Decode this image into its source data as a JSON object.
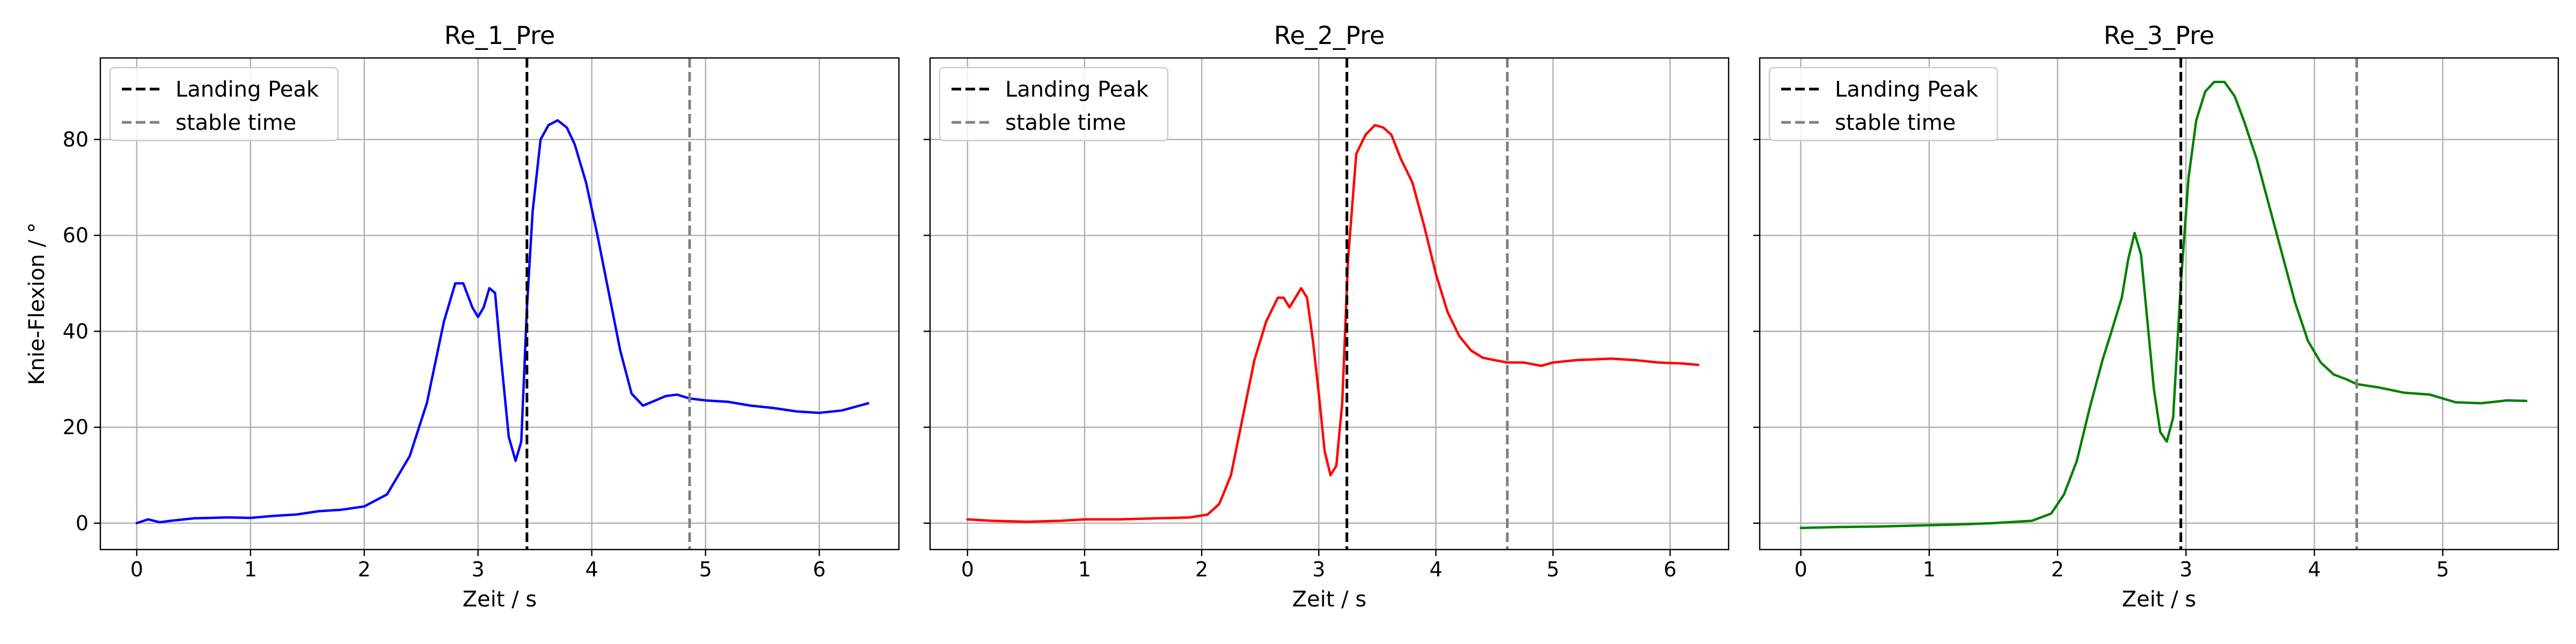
{
  "chart_data": [
    {
      "type": "line",
      "title": "Re_1_Pre",
      "xlabel": "Zeit / s",
      "ylabel": "Knie-Flexion / °",
      "xlim": [
        -0.32,
        6.7
      ],
      "ylim": [
        -5.5,
        97
      ],
      "xticks": [
        0,
        1,
        2,
        3,
        4,
        5,
        6
      ],
      "yticks": [
        0,
        20,
        40,
        60,
        80
      ],
      "grid": true,
      "legend_position": "top-left",
      "markers": [
        {
          "name": "Landing Peak",
          "x": 3.43,
          "color": "#000000"
        },
        {
          "name": "stable time",
          "x": 4.86,
          "color": "#808080"
        }
      ],
      "series": [
        {
          "color": "#0000ff",
          "x": [
            0,
            0.1,
            0.2,
            0.3,
            0.5,
            0.8,
            1.0,
            1.2,
            1.4,
            1.6,
            1.8,
            2.0,
            2.2,
            2.4,
            2.55,
            2.7,
            2.8,
            2.87,
            2.95,
            3.0,
            3.05,
            3.1,
            3.15,
            3.2,
            3.27,
            3.33,
            3.38,
            3.43,
            3.48,
            3.55,
            3.62,
            3.7,
            3.78,
            3.85,
            3.95,
            4.05,
            4.15,
            4.25,
            4.35,
            4.45,
            4.55,
            4.65,
            4.75,
            4.86,
            5.0,
            5.2,
            5.4,
            5.6,
            5.8,
            6.0,
            6.2,
            6.43
          ],
          "y": [
            0,
            0.8,
            0.2,
            0.5,
            1.0,
            1.2,
            1.1,
            1.5,
            1.8,
            2.5,
            2.8,
            3.5,
            6.0,
            14.0,
            25.0,
            42.0,
            50.0,
            50.0,
            45.0,
            43.0,
            45.0,
            49.0,
            48.0,
            35.0,
            18.0,
            13.0,
            17.0,
            45.0,
            65.0,
            80.0,
            83.0,
            84.0,
            82.5,
            79.0,
            71.0,
            60.0,
            48.0,
            36.0,
            27.0,
            24.5,
            25.5,
            26.5,
            26.8,
            26.0,
            25.6,
            25.3,
            24.5,
            24.0,
            23.3,
            23.0,
            23.5,
            25.0
          ]
        }
      ]
    },
    {
      "type": "line",
      "title": "Re_2_Pre",
      "xlabel": "Zeit / s",
      "ylabel": "",
      "xlim": [
        -0.32,
        6.5
      ],
      "ylim": [
        -5.5,
        97
      ],
      "xticks": [
        0,
        1,
        2,
        3,
        4,
        5,
        6
      ],
      "yticks": [
        0,
        20,
        40,
        60,
        80
      ],
      "grid": true,
      "legend_position": "top-left",
      "markers": [
        {
          "name": "Landing Peak",
          "x": 3.24,
          "color": "#000000"
        },
        {
          "name": "stable time",
          "x": 4.61,
          "color": "#808080"
        }
      ],
      "series": [
        {
          "color": "#ff0000",
          "x": [
            0,
            0.2,
            0.5,
            0.8,
            1.0,
            1.3,
            1.6,
            1.9,
            2.05,
            2.15,
            2.25,
            2.35,
            2.45,
            2.55,
            2.65,
            2.7,
            2.75,
            2.8,
            2.85,
            2.9,
            2.95,
            3.0,
            3.05,
            3.1,
            3.15,
            3.2,
            3.25,
            3.32,
            3.4,
            3.48,
            3.55,
            3.62,
            3.7,
            3.8,
            3.9,
            4.0,
            4.1,
            4.2,
            4.3,
            4.4,
            4.5,
            4.61,
            4.75,
            4.9,
            5.0,
            5.2,
            5.5,
            5.7,
            5.9,
            6.1,
            6.24
          ],
          "y": [
            0.8,
            0.5,
            0.3,
            0.5,
            0.8,
            0.8,
            1.0,
            1.2,
            1.8,
            4.0,
            10.0,
            22.0,
            34.0,
            42.0,
            47.0,
            47.0,
            45.0,
            47.0,
            49.0,
            47.0,
            38.0,
            27.0,
            15.0,
            10.0,
            12.0,
            25.0,
            55.0,
            77.0,
            81.0,
            83.0,
            82.5,
            81.0,
            76.0,
            71.0,
            62.0,
            52.0,
            44.0,
            39.0,
            36.0,
            34.5,
            34.0,
            33.5,
            33.5,
            32.8,
            33.5,
            34.0,
            34.3,
            34.0,
            33.5,
            33.3,
            33.0
          ]
        }
      ]
    },
    {
      "type": "line",
      "title": "Re_3_Pre",
      "xlabel": "Zeit / s",
      "ylabel": "",
      "xlim": [
        -0.32,
        5.9
      ],
      "ylim": [
        -5.5,
        97
      ],
      "xticks": [
        0,
        1,
        2,
        3,
        4,
        5
      ],
      "yticks": [
        0,
        20,
        40,
        60,
        80
      ],
      "grid": true,
      "legend_position": "top-left",
      "markers": [
        {
          "name": "Landing Peak",
          "x": 2.96,
          "color": "#000000"
        },
        {
          "name": "stable time",
          "x": 4.33,
          "color": "#808080"
        }
      ],
      "series": [
        {
          "color": "#008000",
          "x": [
            0,
            0.3,
            0.6,
            0.9,
            1.2,
            1.5,
            1.8,
            1.95,
            2.05,
            2.15,
            2.25,
            2.35,
            2.42,
            2.5,
            2.55,
            2.6,
            2.65,
            2.7,
            2.75,
            2.8,
            2.85,
            2.9,
            2.96,
            3.02,
            3.08,
            3.15,
            3.22,
            3.3,
            3.38,
            3.45,
            3.55,
            3.65,
            3.75,
            3.85,
            3.95,
            4.05,
            4.15,
            4.25,
            4.33,
            4.5,
            4.7,
            4.9,
            5.1,
            5.3,
            5.5,
            5.65
          ],
          "y": [
            -1.0,
            -0.8,
            -0.7,
            -0.5,
            -0.3,
            0.0,
            0.5,
            2.0,
            6.0,
            13.0,
            24.0,
            34.0,
            40.0,
            47.0,
            55.0,
            60.5,
            56.0,
            42.0,
            28.0,
            19.0,
            17.0,
            22.0,
            50.0,
            72.0,
            84.0,
            90.0,
            92.0,
            92.0,
            89.0,
            84.0,
            76.0,
            66.0,
            56.0,
            46.0,
            38.0,
            33.5,
            31.0,
            30.0,
            29.0,
            28.3,
            27.2,
            26.8,
            25.2,
            25.0,
            25.6,
            25.5
          ]
        }
      ]
    }
  ]
}
